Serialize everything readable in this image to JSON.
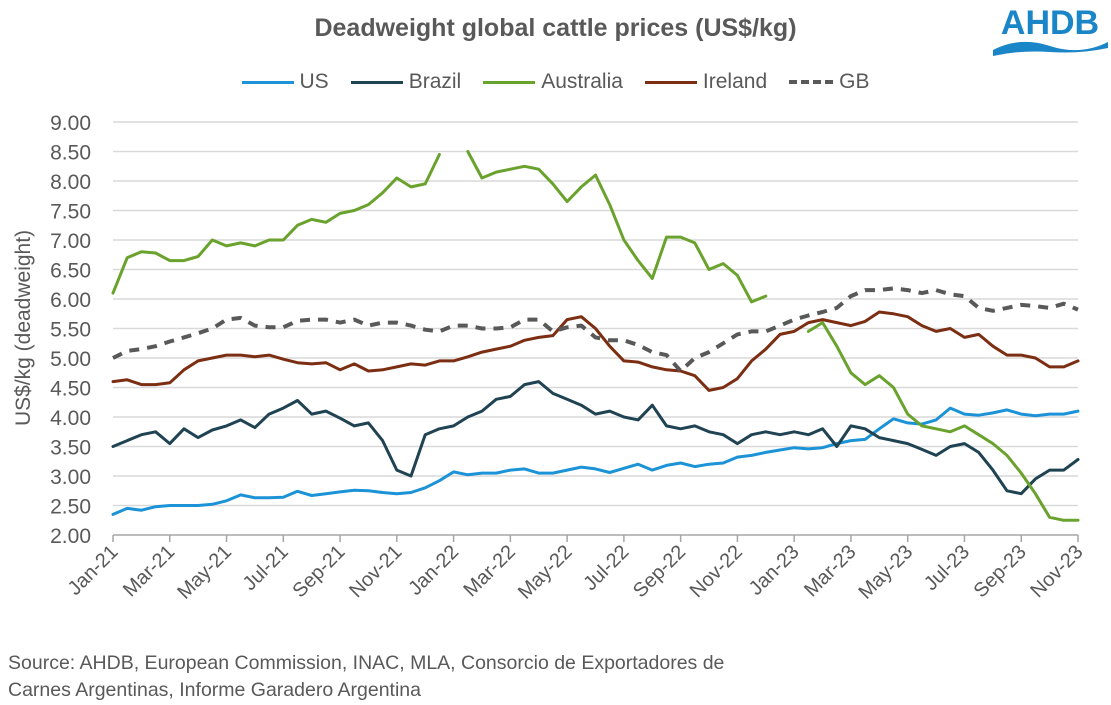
{
  "header": {
    "title": "Deadweight global cattle prices (US$/kg)",
    "logo_text": "AHDB"
  },
  "colors": {
    "US": "#1B93D6",
    "Brazil": "#1F4352",
    "Australia": "#6AA22E",
    "Ireland": "#7B2E12",
    "GB": "#595959",
    "grid": "#D9D9D9",
    "axis": "#A6A6A6",
    "logo": "#1A86C8"
  },
  "footer": {
    "source_line1": "Source: AHDB, European Commission, INAC, MLA, Consorcio de Exportadores de",
    "source_line2": "Carnes Argentinas, Informe Garadero Argentina"
  },
  "chart_data": {
    "type": "line",
    "title": "Deadweight global cattle prices (US$/kg)",
    "xlabel": "",
    "ylabel": "US$/kg (deadweight)",
    "ylim": [
      2.0,
      9.0
    ],
    "yticks": [
      "2.00",
      "2.50",
      "3.00",
      "3.50",
      "4.00",
      "4.50",
      "5.00",
      "5.50",
      "6.00",
      "6.50",
      "7.00",
      "7.50",
      "8.00",
      "8.50",
      "9.00"
    ],
    "x_ticks": [
      "Jan-21",
      "Mar-21",
      "May-21",
      "Jul-21",
      "Sep-21",
      "Nov-21",
      "Jan-22",
      "Mar-22",
      "May-22",
      "Jul-22",
      "Sep-22",
      "Nov-22",
      "Jan-23",
      "Mar-23",
      "May-23",
      "Jul-23",
      "Sep-23",
      "Nov-23"
    ],
    "x_note": "x values are months since Jan-21 (semi-monthly samples, 0 to 34)",
    "grid": true,
    "legend_position": "top",
    "series": [
      {
        "name": "US",
        "style": "solid",
        "x": [
          0,
          0.5,
          1,
          1.5,
          2,
          2.5,
          3,
          3.5,
          4,
          4.5,
          5,
          5.5,
          6,
          6.5,
          7,
          7.5,
          8,
          8.5,
          9,
          9.5,
          10,
          10.5,
          11,
          11.5,
          12,
          12.5,
          13,
          13.5,
          14,
          14.5,
          15,
          15.5,
          16,
          16.5,
          17,
          17.5,
          18,
          18.5,
          19,
          19.5,
          20,
          20.5,
          21,
          21.5,
          22,
          22.5,
          23,
          23.5,
          24,
          24.5,
          25,
          25.5,
          26,
          26.5,
          27,
          27.5,
          28,
          28.5,
          29,
          29.5,
          30,
          30.5,
          31,
          31.5,
          32,
          32.5,
          33,
          33.5,
          34
        ],
        "values": [
          2.35,
          2.45,
          2.42,
          2.48,
          2.5,
          2.5,
          2.5,
          2.52,
          2.58,
          2.68,
          2.63,
          2.63,
          2.64,
          2.74,
          2.67,
          2.7,
          2.73,
          2.76,
          2.75,
          2.72,
          2.7,
          2.72,
          2.8,
          2.92,
          3.07,
          3.02,
          3.05,
          3.05,
          3.1,
          3.12,
          3.05,
          3.05,
          3.1,
          3.15,
          3.12,
          3.06,
          3.13,
          3.2,
          3.1,
          3.18,
          3.22,
          3.16,
          3.2,
          3.22,
          3.32,
          3.35,
          3.4,
          3.44,
          3.48,
          3.46,
          3.48,
          3.55,
          3.6,
          3.62,
          3.8,
          3.97,
          3.9,
          3.88,
          3.95,
          4.15,
          4.05,
          4.03,
          4.07,
          4.12,
          4.05,
          4.02,
          4.05,
          4.05,
          4.1
        ]
      },
      {
        "name": "Brazil",
        "style": "solid",
        "x": [
          0,
          0.5,
          1,
          1.5,
          2,
          2.5,
          3,
          3.5,
          4,
          4.5,
          5,
          5.5,
          6,
          6.5,
          7,
          7.5,
          8,
          8.5,
          9,
          9.5,
          10,
          10.5,
          11,
          11.5,
          12,
          12.5,
          13,
          13.5,
          14,
          14.5,
          15,
          15.5,
          16,
          16.5,
          17,
          17.5,
          18,
          18.5,
          19,
          19.5,
          20,
          20.5,
          21,
          21.5,
          22,
          22.5,
          23,
          23.5,
          24,
          24.5,
          25,
          25.5,
          26,
          26.5,
          27,
          27.5,
          28,
          28.5,
          29,
          29.5,
          30,
          30.5,
          31,
          31.5,
          32,
          32.5,
          33,
          33.5,
          34
        ],
        "values": [
          3.5,
          3.6,
          3.7,
          3.75,
          3.55,
          3.8,
          3.65,
          3.78,
          3.85,
          3.95,
          3.82,
          4.05,
          4.15,
          4.28,
          4.05,
          4.1,
          3.98,
          3.85,
          3.9,
          3.6,
          3.1,
          3.0,
          3.7,
          3.8,
          3.85,
          4.0,
          4.1,
          4.3,
          4.35,
          4.55,
          4.6,
          4.4,
          4.3,
          4.2,
          4.05,
          4.1,
          4.0,
          3.95,
          4.2,
          3.85,
          3.8,
          3.85,
          3.75,
          3.7,
          3.55,
          3.7,
          3.75,
          3.7,
          3.75,
          3.7,
          3.8,
          3.5,
          3.85,
          3.8,
          3.65,
          3.6,
          3.55,
          3.45,
          3.35,
          3.5,
          3.55,
          3.4,
          3.1,
          2.75,
          2.7,
          2.95,
          3.1,
          3.1,
          3.28
        ]
      },
      {
        "name": "Australia",
        "style": "solid",
        "x": [
          0,
          0.5,
          1,
          1.5,
          2,
          2.5,
          3,
          3.5,
          4,
          4.5,
          5,
          5.5,
          6,
          6.5,
          7,
          7.5,
          8,
          8.5,
          9,
          9.5,
          10,
          10.5,
          11,
          11.5,
          12,
          12.5,
          13,
          13.5,
          14,
          14.5,
          15,
          15.5,
          16,
          16.5,
          17,
          17.5,
          18,
          18.5,
          19,
          19.5,
          20,
          20.5,
          21,
          21.5,
          22,
          22.5,
          23,
          23.5,
          24,
          24.5,
          25,
          25.5,
          26,
          26.5,
          27,
          27.5,
          28,
          28.5,
          29,
          29.5,
          30,
          30.5,
          31,
          31.5,
          32,
          32.5,
          33,
          33.5,
          34
        ],
        "values": [
          6.1,
          6.7,
          6.8,
          6.78,
          6.65,
          6.65,
          6.72,
          7.0,
          6.9,
          6.95,
          6.9,
          7.0,
          7.0,
          7.25,
          7.35,
          7.3,
          7.45,
          7.5,
          7.6,
          7.8,
          8.05,
          7.9,
          7.95,
          8.45,
          null,
          8.5,
          8.05,
          8.15,
          8.2,
          8.25,
          8.2,
          7.95,
          7.65,
          7.9,
          8.1,
          7.6,
          7.0,
          6.65,
          6.35,
          7.05,
          7.05,
          6.95,
          6.5,
          6.6,
          6.4,
          5.95,
          6.05,
          null,
          null,
          5.45,
          5.6,
          5.2,
          4.75,
          4.55,
          4.7,
          4.5,
          4.05,
          3.85,
          3.8,
          3.75,
          3.85,
          3.7,
          3.55,
          3.35,
          3.05,
          2.7,
          2.3,
          2.25,
          2.25
        ]
      },
      {
        "name": "Ireland",
        "style": "solid",
        "x": [
          0,
          0.5,
          1,
          1.5,
          2,
          2.5,
          3,
          3.5,
          4,
          4.5,
          5,
          5.5,
          6,
          6.5,
          7,
          7.5,
          8,
          8.5,
          9,
          9.5,
          10,
          10.5,
          11,
          11.5,
          12,
          12.5,
          13,
          13.5,
          14,
          14.5,
          15,
          15.5,
          16,
          16.5,
          17,
          17.5,
          18,
          18.5,
          19,
          19.5,
          20,
          20.5,
          21,
          21.5,
          22,
          22.5,
          23,
          23.5,
          24,
          24.5,
          25,
          25.5,
          26,
          26.5,
          27,
          27.5,
          28,
          28.5,
          29,
          29.5,
          30,
          30.5,
          31,
          31.5,
          32,
          32.5,
          33,
          33.5,
          34
        ],
        "values": [
          4.6,
          4.63,
          4.55,
          4.55,
          4.58,
          4.8,
          4.95,
          5.0,
          5.05,
          5.05,
          5.02,
          5.05,
          4.98,
          4.92,
          4.9,
          4.92,
          4.8,
          4.9,
          4.78,
          4.8,
          4.85,
          4.9,
          4.88,
          4.95,
          4.95,
          5.02,
          5.1,
          5.15,
          5.2,
          5.3,
          5.35,
          5.38,
          5.65,
          5.7,
          5.5,
          5.2,
          4.95,
          4.93,
          4.85,
          4.8,
          4.78,
          4.7,
          4.45,
          4.5,
          4.65,
          4.95,
          5.15,
          5.4,
          5.45,
          5.6,
          5.65,
          5.6,
          5.55,
          5.62,
          5.78,
          5.75,
          5.7,
          5.55,
          5.45,
          5.5,
          5.35,
          5.4,
          5.2,
          5.05,
          5.05,
          5.0,
          4.85,
          4.85,
          4.95
        ]
      },
      {
        "name": "GB",
        "style": "dashed",
        "x": [
          0,
          0.5,
          1,
          1.5,
          2,
          2.5,
          3,
          3.5,
          4,
          4.5,
          5,
          5.5,
          6,
          6.5,
          7,
          7.5,
          8,
          8.5,
          9,
          9.5,
          10,
          10.5,
          11,
          11.5,
          12,
          12.5,
          13,
          13.5,
          14,
          14.5,
          15,
          15.5,
          16,
          16.5,
          17,
          17.5,
          18,
          18.5,
          19,
          19.5,
          20,
          20.5,
          21,
          21.5,
          22,
          22.5,
          23,
          23.5,
          24,
          24.5,
          25,
          25.5,
          26,
          26.5,
          27,
          27.5,
          28,
          28.5,
          29,
          29.5,
          30,
          30.5,
          31,
          31.5,
          32,
          32.5,
          33,
          33.5,
          34
        ],
        "values": [
          5.0,
          5.12,
          5.15,
          5.2,
          5.28,
          5.35,
          5.42,
          5.5,
          5.65,
          5.68,
          5.55,
          5.52,
          5.52,
          5.63,
          5.65,
          5.65,
          5.6,
          5.65,
          5.55,
          5.6,
          5.6,
          5.55,
          5.48,
          5.45,
          5.55,
          5.55,
          5.5,
          5.5,
          5.52,
          5.65,
          5.65,
          5.45,
          5.52,
          5.55,
          5.35,
          5.3,
          5.3,
          5.22,
          5.1,
          5.05,
          4.78,
          5.0,
          5.1,
          5.25,
          5.4,
          5.45,
          5.45,
          5.55,
          5.65,
          5.72,
          5.78,
          5.85,
          6.05,
          6.15,
          6.15,
          6.18,
          6.15,
          6.1,
          6.15,
          6.08,
          6.05,
          5.85,
          5.8,
          5.85,
          5.9,
          5.88,
          5.85,
          5.92,
          5.82
        ]
      }
    ]
  }
}
